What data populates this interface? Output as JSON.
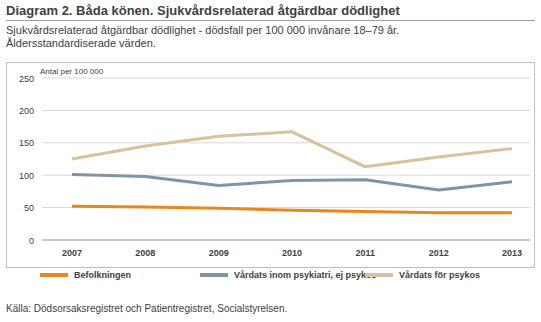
{
  "chart_data": {
    "type": "line",
    "title": "Diagram 2. Båda könen. Sjukvårdsrelaterad åtgärdbar dödlighet",
    "subtitle": "Sjukvårdsrelaterad åtgärdbar dödlighet - dödsfall per 100 000 invånare 18–79 år. Åldersstandardiserade värden.",
    "y_label": "Antal per 100 000",
    "source": "Källa: Dödsorsaksregistret och Patientregistret, Socialstyrelsen.",
    "categories": [
      "2007",
      "2008",
      "2009",
      "2010",
      "2011",
      "2012",
      "2013"
    ],
    "series": [
      {
        "name": "Befolkningen",
        "color": "#e8871e",
        "values": [
          52,
          51,
          49,
          46,
          44,
          42,
          42
        ]
      },
      {
        "name": "Vårdats inom psykiatri, ej psykos",
        "color": "#7f95a5",
        "values": [
          101,
          98,
          84,
          92,
          93,
          77,
          90
        ]
      },
      {
        "name": "Vårdats för psykos",
        "color": "#d5c39f",
        "values": [
          125,
          145,
          160,
          167,
          113,
          128,
          141
        ]
      }
    ],
    "ylim": [
      0,
      250
    ],
    "yticks": [
      0,
      50,
      100,
      150,
      200,
      250
    ],
    "grid": true
  }
}
